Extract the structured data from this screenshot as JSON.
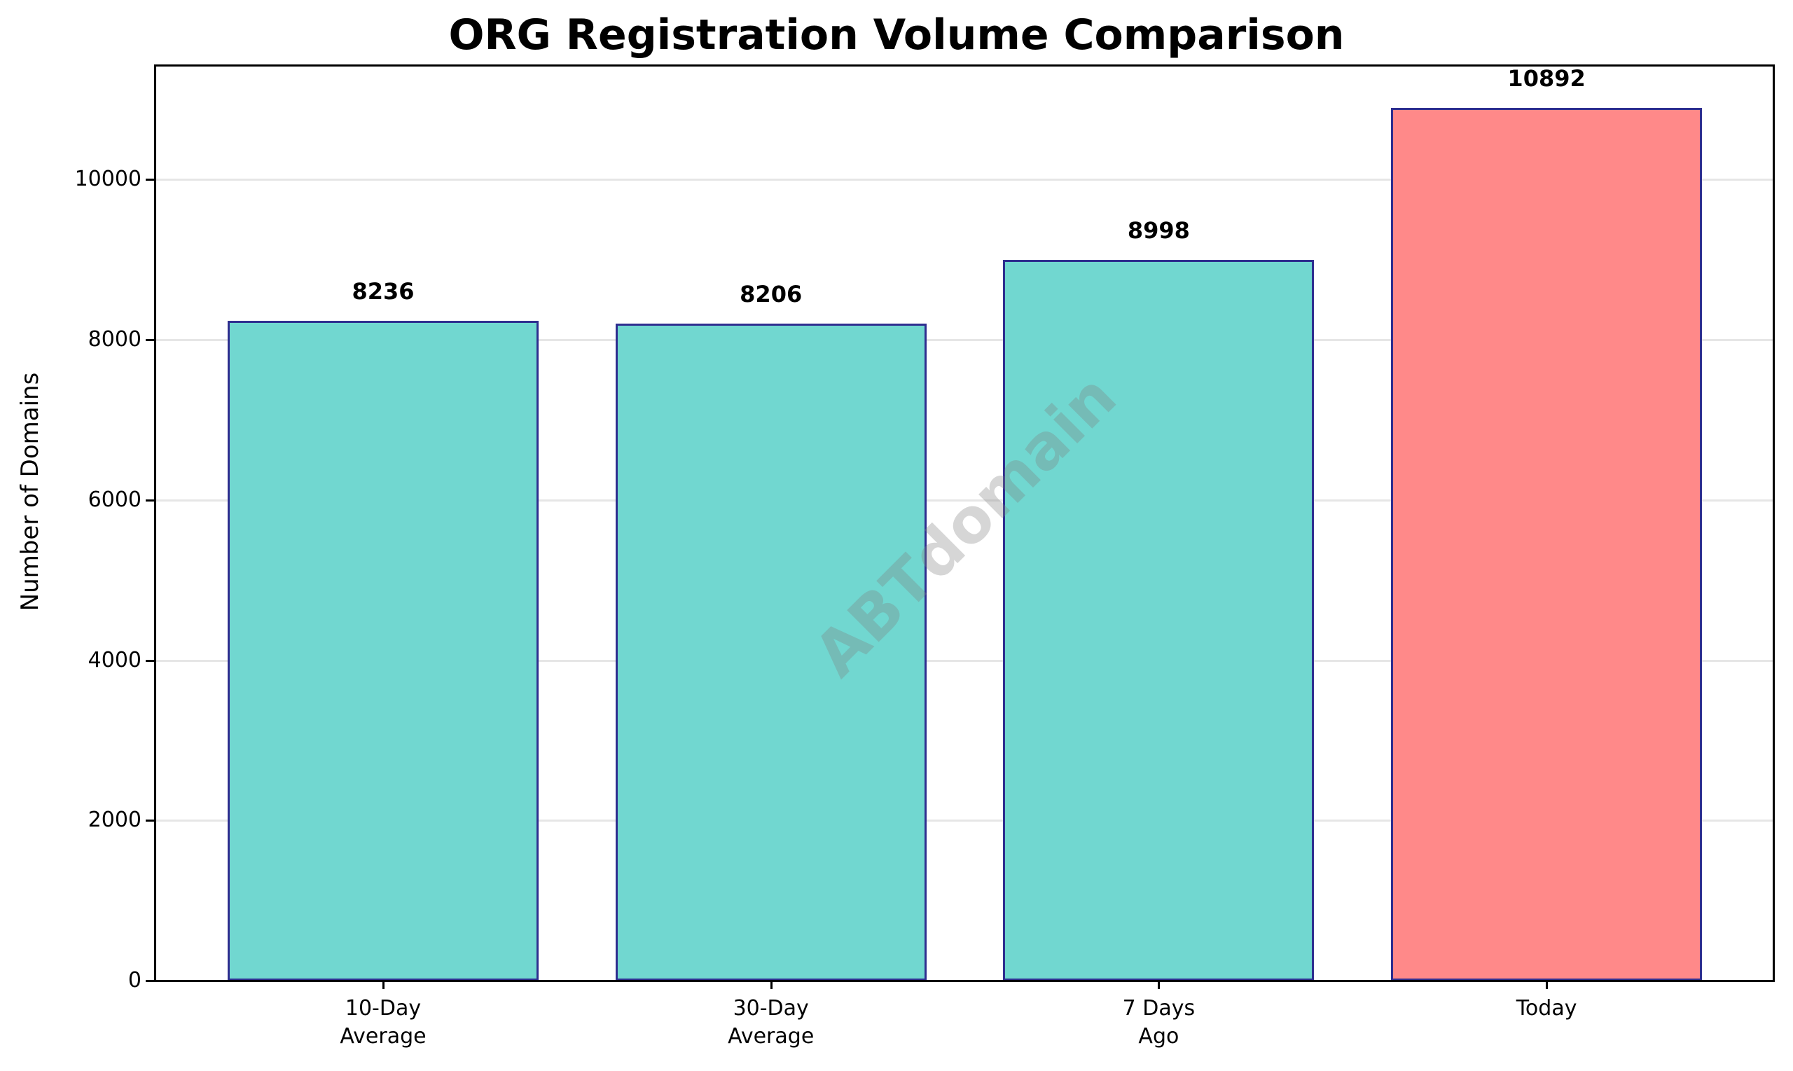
{
  "chart_data": {
    "type": "bar",
    "title": "ORG Registration Volume Comparison",
    "xlabel": "",
    "ylabel": "Number of Domains",
    "categories": [
      "10-Day\nAverage",
      "30-Day\nAverage",
      "7 Days\nAgo",
      "Today"
    ],
    "values": [
      8236,
      8206,
      8998,
      10892
    ],
    "data_labels": [
      "8236",
      "8206",
      "8998",
      "10892"
    ],
    "bar_colors": [
      "#71D7D0",
      "#71D7D0",
      "#71D7D0",
      "#FF8989"
    ],
    "edge_color": "#2E2E8F",
    "ylim": [
      0,
      11437
    ],
    "yticks": [
      0,
      2000,
      4000,
      6000,
      8000,
      10000
    ],
    "ytick_labels": [
      "0",
      "2000",
      "4000",
      "6000",
      "8000",
      "10000"
    ],
    "grid": {
      "axis": "y",
      "on": true,
      "color": "#E6E6E6"
    },
    "legend": null,
    "watermark": "ABTdomain"
  }
}
